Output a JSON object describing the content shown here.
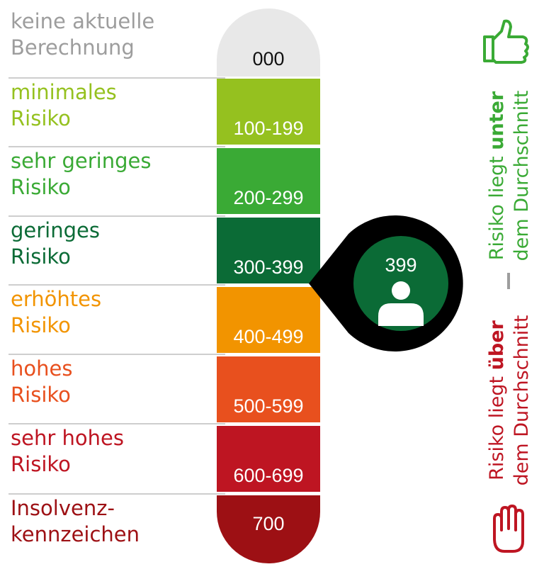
{
  "levels": [
    {
      "label": [
        "keine aktuelle",
        "Berechnung"
      ],
      "range": "000",
      "color": "#e8e8e8",
      "text_color": "#9d9d9d",
      "range_color": "#111111"
    },
    {
      "label": [
        "minimales",
        "Risiko"
      ],
      "range": "100-199",
      "color": "#95c11f",
      "text_color": "#95c11f",
      "range_color": "#ffffff"
    },
    {
      "label": [
        "sehr geringes",
        "Risiko"
      ],
      "range": "200-299",
      "color": "#3aaa35",
      "text_color": "#3aaa35",
      "range_color": "#ffffff"
    },
    {
      "label": [
        "geringes",
        "Risiko"
      ],
      "range": "300-399",
      "color": "#0b6b36",
      "text_color": "#0b6b36",
      "range_color": "#ffffff"
    },
    {
      "label": [
        "erhöhtes",
        "Risiko"
      ],
      "range": "400-499",
      "color": "#f29400",
      "text_color": "#f29400",
      "range_color": "#ffffff"
    },
    {
      "label": [
        "hohes",
        "Risiko"
      ],
      "range": "500-599",
      "color": "#e8501e",
      "text_color": "#e8501e",
      "range_color": "#ffffff"
    },
    {
      "label": [
        "sehr hohes",
        "Risiko"
      ],
      "range": "600-699",
      "color": "#be1522",
      "text_color": "#be1522",
      "range_color": "#ffffff"
    },
    {
      "label": [
        "Insolvenz-",
        "kennzeichen"
      ],
      "range": "700",
      "color": "#9d1014",
      "text_color": "#9d1014",
      "range_color": "#ffffff"
    }
  ],
  "pointer": {
    "value": "399",
    "level": 3
  },
  "side": {
    "below": {
      "prefix": "Risiko liegt ",
      "bold": "unter",
      "line2": "dem Durchschnitt",
      "color": "#3aaa35"
    },
    "above": {
      "prefix": "Risiko liegt ",
      "bold": "über",
      "line2": "dem Durchschnitt",
      "color": "#be1522"
    }
  }
}
